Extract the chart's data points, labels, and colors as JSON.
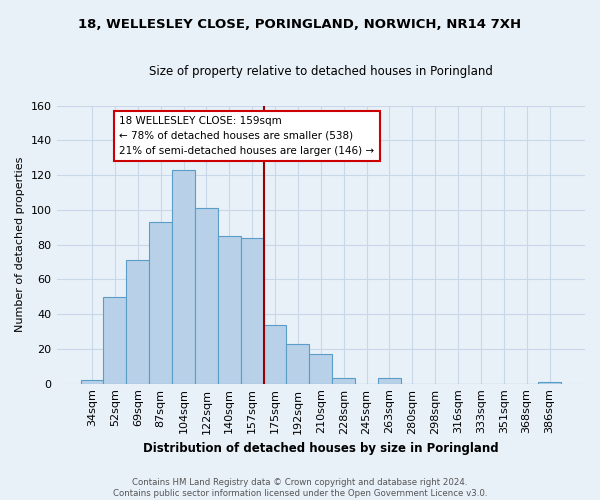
{
  "title1": "18, WELLESLEY CLOSE, PORINGLAND, NORWICH, NR14 7XH",
  "title2": "Size of property relative to detached houses in Poringland",
  "xlabel": "Distribution of detached houses by size in Poringland",
  "ylabel": "Number of detached properties",
  "bar_labels": [
    "34sqm",
    "52sqm",
    "69sqm",
    "87sqm",
    "104sqm",
    "122sqm",
    "140sqm",
    "157sqm",
    "175sqm",
    "192sqm",
    "210sqm",
    "228sqm",
    "245sqm",
    "263sqm",
    "280sqm",
    "298sqm",
    "316sqm",
    "333sqm",
    "351sqm",
    "368sqm",
    "386sqm"
  ],
  "bar_values": [
    2,
    50,
    71,
    93,
    123,
    101,
    85,
    84,
    34,
    23,
    17,
    3,
    0,
    3,
    0,
    0,
    0,
    0,
    0,
    0,
    1
  ],
  "bar_color": "#b8d0e8",
  "bar_edge_color": "#5a9dc8",
  "vline_index": 7.5,
  "vline_color": "#990000",
  "annotation_title": "18 WELLESLEY CLOSE: 159sqm",
  "annotation_line1": "← 78% of detached houses are smaller (538)",
  "annotation_line2": "21% of semi-detached houses are larger (146) →",
  "annotation_box_color": "#ffffff",
  "annotation_box_edge": "#cc0000",
  "ylim": [
    0,
    160
  ],
  "yticks": [
    0,
    20,
    40,
    60,
    80,
    100,
    120,
    140,
    160
  ],
  "footer1": "Contains HM Land Registry data © Crown copyright and database right 2024.",
  "footer2": "Contains public sector information licensed under the Open Government Licence v3.0.",
  "bg_color": "#e8f0f8",
  "grid_color": "#c8d8e8"
}
